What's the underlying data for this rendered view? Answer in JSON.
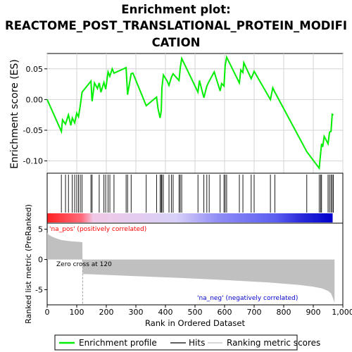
{
  "title_line1": "Enrichment plot:",
  "title_line2": "REACTOME_POST_TRANSLATIONAL_PROTEIN_MODIFI",
  "title_line3": "CATION",
  "colors": {
    "enrichment_line": "#00ee00",
    "hits": "#000000",
    "ranking_fill": "#c0c0c0",
    "pos_label": "#ff0000",
    "neg_label": "#0000cc",
    "grid": "#d3d3d3"
  },
  "chart_data": [
    {
      "type": "line",
      "panel": "enrichment-profile",
      "ylabel": "Enrichment score (ES)",
      "xlim": [
        0,
        1000
      ],
      "ylim": [
        -0.12,
        0.075
      ],
      "yticks": [
        0.05,
        0.0,
        -0.05,
        -0.1
      ],
      "ytick_labels": [
        "0.05",
        "0.00",
        "-0.05",
        "-0.10"
      ],
      "grid": true,
      "series": [
        {
          "x": [
            0,
            48,
            52,
            62,
            72,
            80,
            85,
            93,
            100,
            106,
            112,
            118,
            148,
            152,
            160,
            170,
            176,
            182,
            192,
            198,
            206,
            212,
            220,
            226,
            267,
            272,
            284,
            290,
            335,
            370,
            375,
            382,
            386,
            388,
            393,
            406,
            412,
            420,
            426,
            446,
            450,
            455,
            510,
            515,
            530,
            540,
            548,
            565,
            585,
            590,
            598,
            602,
            607,
            650,
            655,
            662,
            665,
            690,
            700,
            755,
            763,
            770,
            878,
            920,
            925,
            928,
            932,
            937,
            950,
            955,
            960,
            964,
            968
          ],
          "y": [
            0.0,
            -0.052,
            -0.033,
            -0.04,
            -0.025,
            -0.042,
            -0.03,
            -0.038,
            -0.022,
            -0.028,
            -0.01,
            0.012,
            0.03,
            -0.003,
            0.027,
            0.018,
            0.027,
            0.012,
            0.028,
            0.017,
            0.045,
            0.038,
            0.05,
            0.043,
            0.052,
            0.008,
            0.042,
            0.043,
            -0.01,
            0.004,
            -0.015,
            -0.03,
            -0.018,
            0.019,
            0.04,
            0.03,
            0.023,
            0.036,
            0.042,
            0.031,
            0.051,
            0.067,
            0.012,
            0.031,
            0.003,
            0.022,
            0.03,
            0.045,
            0.014,
            0.026,
            0.022,
            0.055,
            0.069,
            0.027,
            0.048,
            0.044,
            0.06,
            0.034,
            0.046,
            -0.0,
            0.019,
            0.012,
            -0.085,
            -0.112,
            -0.087,
            -0.072,
            -0.077,
            -0.06,
            -0.072,
            -0.053,
            -0.052,
            -0.024,
            -0.025
          ]
        }
      ]
    },
    {
      "type": "scatter",
      "panel": "hits",
      "x": [
        48,
        62,
        72,
        85,
        93,
        100,
        106,
        112,
        118,
        148,
        152,
        176,
        192,
        198,
        206,
        212,
        226,
        267,
        272,
        284,
        335,
        370,
        382,
        386,
        388,
        393,
        412,
        420,
        426,
        446,
        450,
        455,
        510,
        530,
        540,
        548,
        585,
        598,
        602,
        607,
        650,
        662,
        690,
        700,
        755,
        770,
        878,
        920,
        925,
        928,
        950,
        955,
        960,
        964,
        968
      ]
    },
    {
      "type": "area",
      "panel": "ranked-list-metric",
      "ylabel": "Ranked list metric (PreRanked)",
      "xlabel": "Rank in Ordered Dataset",
      "xlim": [
        0,
        1000
      ],
      "ylim": [
        -7.5,
        6
      ],
      "xticks": [
        0,
        100,
        200,
        300,
        400,
        500,
        600,
        700,
        800,
        900,
        1000
      ],
      "xtick_labels": [
        "0",
        "100",
        "200",
        "300",
        "400",
        "500",
        "600",
        "700",
        "800",
        "900",
        "1,000"
      ],
      "yticks": [
        5,
        0,
        -5
      ],
      "ytick_labels": [
        "5",
        "0",
        "-5"
      ],
      "x": [
        0,
        5,
        15,
        30,
        50,
        80,
        110,
        119,
        120,
        150,
        300,
        450,
        600,
        750,
        850,
        900,
        930,
        950,
        960,
        965,
        970,
        972
      ],
      "y": [
        4.4,
        4.1,
        3.8,
        3.5,
        3.2,
        3.0,
        2.9,
        2.85,
        -2.4,
        -2.45,
        -2.75,
        -3.05,
        -3.4,
        -3.8,
        -4.2,
        -4.5,
        -4.8,
        -5.2,
        -5.6,
        -6.2,
        -6.9,
        -7.2
      ]
    }
  ],
  "annotations": {
    "pos": "'na_pos' (positively correlated)",
    "neg": "'na_neg' (negatively correlated)",
    "zero_cross": "Zero cross at 120"
  },
  "legend": {
    "items": [
      {
        "label": "Enrichment profile"
      },
      {
        "label": "Hits"
      },
      {
        "label": "Ranking metric scores"
      }
    ]
  }
}
